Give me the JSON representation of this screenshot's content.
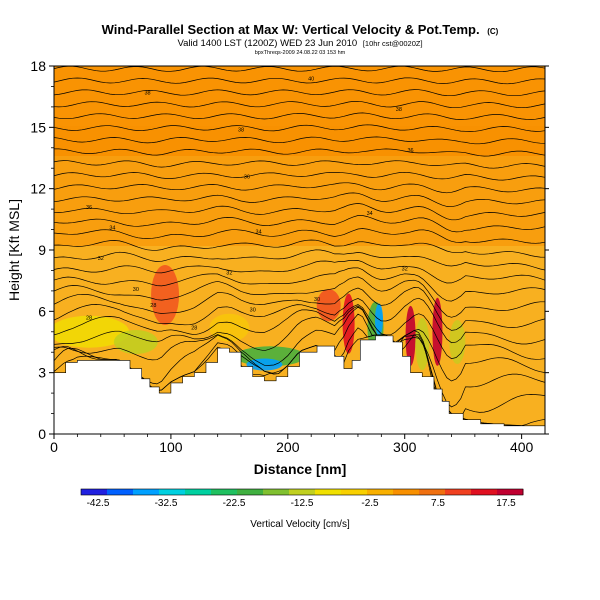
{
  "chart_data": {
    "type": "heatmap",
    "title": "Wind-Parallel Section at Max W: Vertical Velocity & Pot.Temp.",
    "title_unit": "(C)",
    "subtitle": "Valid 1400 LST (1200Z) WED 23 Jun 2010",
    "subtitle_extra": "[10hr cst@0020Z]",
    "subtitle2": "bpxThreqs-2009 24.08.22 03 153 hm",
    "xlabel": "Distance [nm]",
    "ylabel": "Height [Kft MSL]",
    "xlim": [
      0,
      420
    ],
    "ylim": [
      0,
      18
    ],
    "x_ticks": [
      0,
      100,
      200,
      300,
      400
    ],
    "y_ticks": [
      0,
      3,
      6,
      9,
      12,
      15,
      18
    ],
    "colorbar": {
      "label": "Vertical Velocity [cm/s]",
      "tick_labels": [
        "-42.5",
        "-32.5",
        "-22.5",
        "-12.5",
        "-2.5",
        "7.5",
        "17.5"
      ],
      "tick_values": [
        -42.5,
        -32.5,
        -22.5,
        -12.5,
        -2.5,
        7.5,
        17.5
      ],
      "range": [
        -45,
        20
      ],
      "colors": [
        "#2020e0",
        "#0060ff",
        "#00a0ff",
        "#00d0e0",
        "#00d0a0",
        "#20c060",
        "#40b040",
        "#80c030",
        "#c0d020",
        "#f0e000",
        "#f8d000",
        "#f8b000",
        "#f89000",
        "#f07010",
        "#f04020",
        "#e01020",
        "#c00030"
      ]
    },
    "terrain_kft": [
      {
        "x": 0,
        "h": 3.0
      },
      {
        "x": 10,
        "h": 3.5
      },
      {
        "x": 20,
        "h": 3.6
      },
      {
        "x": 40,
        "h": 3.6
      },
      {
        "x": 55,
        "h": 3.6
      },
      {
        "x": 65,
        "h": 3.2
      },
      {
        "x": 75,
        "h": 2.7
      },
      {
        "x": 82,
        "h": 2.3
      },
      {
        "x": 90,
        "h": 2.0
      },
      {
        "x": 100,
        "h": 2.5
      },
      {
        "x": 110,
        "h": 2.8
      },
      {
        "x": 120,
        "h": 3.0
      },
      {
        "x": 130,
        "h": 3.5
      },
      {
        "x": 140,
        "h": 4.2
      },
      {
        "x": 150,
        "h": 4.0
      },
      {
        "x": 160,
        "h": 3.3
      },
      {
        "x": 170,
        "h": 2.8
      },
      {
        "x": 180,
        "h": 2.6
      },
      {
        "x": 190,
        "h": 2.8
      },
      {
        "x": 200,
        "h": 3.3
      },
      {
        "x": 210,
        "h": 4.0
      },
      {
        "x": 225,
        "h": 4.3
      },
      {
        "x": 240,
        "h": 3.8
      },
      {
        "x": 248,
        "h": 3.2
      },
      {
        "x": 255,
        "h": 3.6
      },
      {
        "x": 262,
        "h": 4.6
      },
      {
        "x": 275,
        "h": 4.8
      },
      {
        "x": 284,
        "h": 4.8
      },
      {
        "x": 290,
        "h": 4.5
      },
      {
        "x": 298,
        "h": 3.8
      },
      {
        "x": 305,
        "h": 3.0
      },
      {
        "x": 315,
        "h": 2.8
      },
      {
        "x": 325,
        "h": 2.2
      },
      {
        "x": 332,
        "h": 1.6
      },
      {
        "x": 338,
        "h": 1.0
      },
      {
        "x": 350,
        "h": 0.7
      },
      {
        "x": 365,
        "h": 0.5
      },
      {
        "x": 385,
        "h": 0.4
      },
      {
        "x": 420,
        "h": 0.3
      }
    ],
    "isentropes_label_values": [
      28,
      30,
      32,
      34,
      36,
      38,
      40
    ]
  }
}
